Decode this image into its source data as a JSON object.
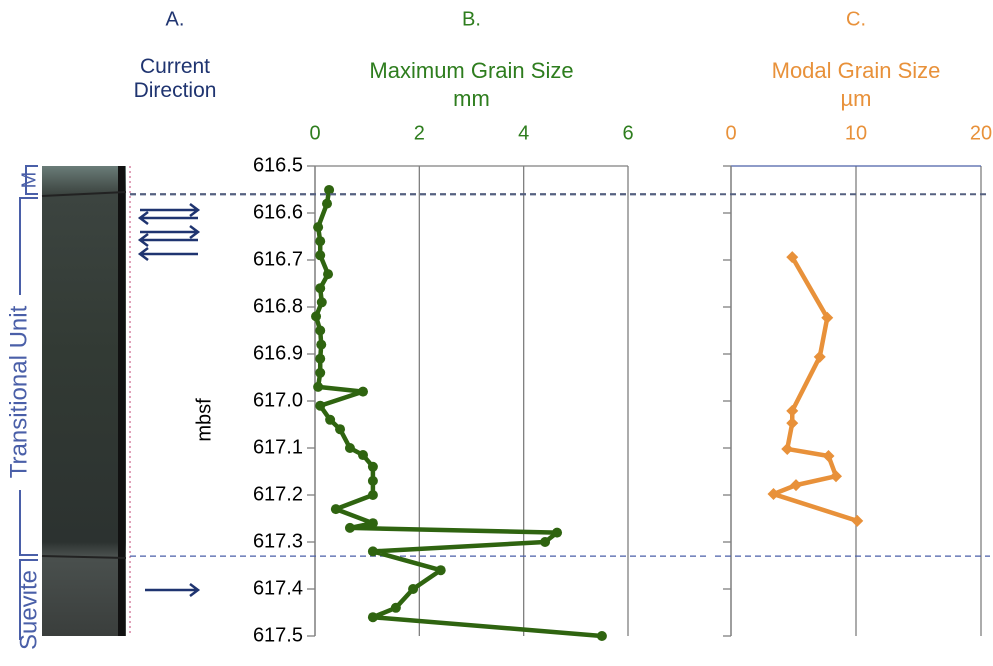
{
  "column_a": {
    "panel_label": "A.",
    "title": "Current Direction"
  },
  "units": [
    "M",
    "Transitional Unit",
    "Suevite"
  ],
  "chart_data": [
    {
      "type": "line",
      "panel_label": "B.",
      "title": "Maximum Grain Size",
      "subtitle": "mm",
      "ylabel": "mbsf",
      "title_color": "#2e7d1e",
      "color": "#2f6410",
      "xlim": [
        0,
        6
      ],
      "xticks": [
        0,
        2,
        4,
        6
      ],
      "ylim": [
        616.5,
        617.5
      ],
      "yticks": [
        616.5,
        616.6,
        616.7,
        616.8,
        616.9,
        {
          "value": 617.0,
          "label": "617.0"
        },
        617.1,
        617.2,
        617.3,
        617.4,
        617.5
      ],
      "ytick_labels": true,
      "grid": true,
      "marker": "circle",
      "hlines": [
        616.56,
        617.33
      ],
      "y": [
        616.551,
        616.58,
        616.63,
        616.66,
        616.69,
        616.73,
        616.76,
        616.79,
        616.82,
        616.85,
        616.88,
        616.91,
        616.94,
        616.97,
        616.98,
        617.01,
        617.04,
        617.06,
        617.1,
        617.115,
        617.14,
        617.17,
        617.2,
        617.23,
        617.26,
        617.27,
        617.28,
        617.3,
        617.32,
        617.36,
        617.4,
        617.44,
        617.46,
        617.5
      ],
      "values": [
        0.27,
        0.23,
        0.06,
        0.1,
        0.1,
        0.25,
        0.1,
        0.13,
        0.02,
        0.1,
        0.12,
        0.1,
        0.1,
        0.06,
        0.92,
        0.1,
        0.29,
        0.48,
        0.67,
        0.92,
        1.11,
        1.11,
        1.11,
        0.4,
        1.11,
        0.67,
        4.64,
        4.41,
        1.11,
        2.41,
        1.88,
        1.55,
        1.11,
        5.5
      ]
    },
    {
      "type": "line",
      "panel_label": "C.",
      "title": "Modal Grain Size",
      "subtitle": "µm",
      "title_color": "#e8913a",
      "color": "#e8913a",
      "xlim": [
        0,
        20
      ],
      "xticks": [
        0,
        10,
        20
      ],
      "ylim": [
        616.5,
        617.5
      ],
      "yticks": [
        616.5,
        616.6,
        616.7,
        616.8,
        616.9,
        617.0,
        617.1,
        617.2,
        617.3,
        617.4,
        617.5
      ],
      "ytick_labels": false,
      "grid": true,
      "marker": "diamond",
      "hlines": [
        616.56,
        617.33
      ],
      "y": [
        616.694,
        616.823,
        616.906,
        617.021,
        617.047,
        617.102,
        617.117,
        617.16,
        617.179,
        617.198,
        617.255
      ],
      "values": [
        4.9,
        7.7,
        7.1,
        4.9,
        4.9,
        4.5,
        7.8,
        8.4,
        5.2,
        3.4,
        10.1
      ]
    }
  ]
}
